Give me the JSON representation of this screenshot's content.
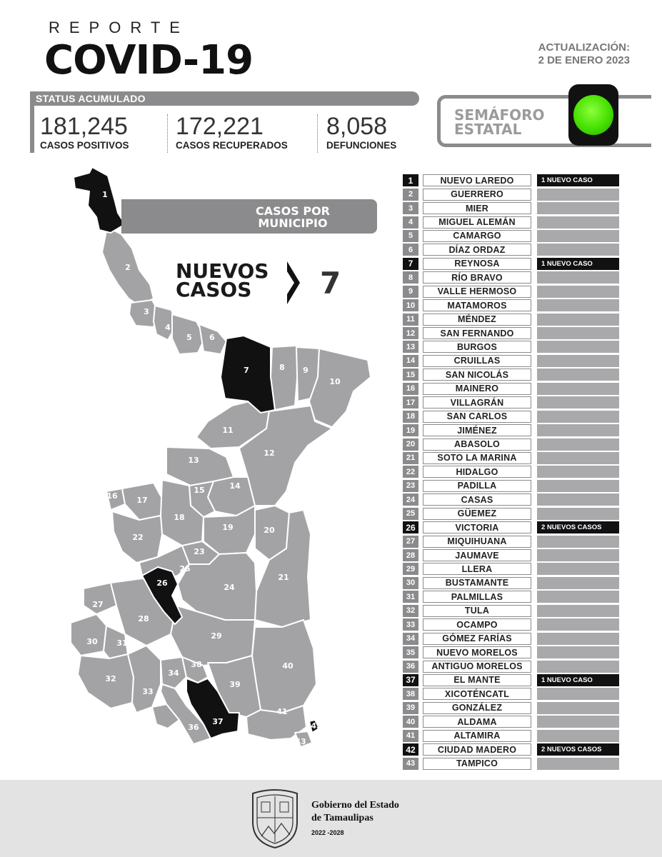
{
  "header": {
    "reporte": "REPORTE",
    "title": "COVID-19",
    "update_label": "ACTUALIZACIÓN:",
    "update_date": "2 DE ENERO 2023"
  },
  "status": {
    "label": "STATUS ACUMULADO",
    "positivos": {
      "value": "181,245",
      "label": "CASOS POSITIVOS"
    },
    "recuperados": {
      "value": "172,221",
      "label": "CASOS RECUPERADOS"
    },
    "defunciones": {
      "value": "8,058",
      "label": "DEFUNCIONES"
    }
  },
  "semaforo": {
    "line1": "SEMÁFORO",
    "line2": "ESTATAL",
    "color": "#44e000"
  },
  "map": {
    "banner_line1": "CASOS POR",
    "banner_line2": "MUNICIPIO",
    "nuevos_line1": "NUEVOS",
    "nuevos_line2": "CASOS",
    "nuevos_count": "7",
    "labels": [
      "1",
      "2",
      "3",
      "4",
      "5",
      "6",
      "7",
      "8",
      "9",
      "10",
      "11",
      "12",
      "13",
      "14",
      "15",
      "16",
      "17",
      "18",
      "19",
      "20",
      "21",
      "22",
      "23",
      "24",
      "25",
      "26",
      "27",
      "28",
      "29",
      "30",
      "31",
      "32",
      "33",
      "34",
      "35",
      "36",
      "37",
      "38",
      "39",
      "40",
      "41",
      "42",
      "43"
    ]
  },
  "municipios": [
    {
      "num": "1",
      "name": "NUEVO LAREDO",
      "cases": "1 NUEVO CASO",
      "highlight": true
    },
    {
      "num": "2",
      "name": "GUERRERO",
      "cases": "",
      "highlight": false
    },
    {
      "num": "3",
      "name": "MIER",
      "cases": "",
      "highlight": false
    },
    {
      "num": "4",
      "name": "MIGUEL ALEMÁN",
      "cases": "",
      "highlight": false
    },
    {
      "num": "5",
      "name": "CAMARGO",
      "cases": "",
      "highlight": false
    },
    {
      "num": "6",
      "name": "DÍAZ ORDAZ",
      "cases": "",
      "highlight": false
    },
    {
      "num": "7",
      "name": "REYNOSA",
      "cases": "1 NUEVO CASO",
      "highlight": true
    },
    {
      "num": "8",
      "name": "RÍO BRAVO",
      "cases": "",
      "highlight": false
    },
    {
      "num": "9",
      "name": "VALLE HERMOSO",
      "cases": "",
      "highlight": false
    },
    {
      "num": "10",
      "name": "MATAMOROS",
      "cases": "",
      "highlight": false
    },
    {
      "num": "11",
      "name": "MÉNDEZ",
      "cases": "",
      "highlight": false
    },
    {
      "num": "12",
      "name": "SAN FERNANDO",
      "cases": "",
      "highlight": false
    },
    {
      "num": "13",
      "name": "BURGOS",
      "cases": "",
      "highlight": false
    },
    {
      "num": "14",
      "name": "CRUILLAS",
      "cases": "",
      "highlight": false
    },
    {
      "num": "15",
      "name": "SAN NICOLÁS",
      "cases": "",
      "highlight": false
    },
    {
      "num": "16",
      "name": "MAINERO",
      "cases": "",
      "highlight": false
    },
    {
      "num": "17",
      "name": "VILLAGRÁN",
      "cases": "",
      "highlight": false
    },
    {
      "num": "18",
      "name": "SAN CARLOS",
      "cases": "",
      "highlight": false
    },
    {
      "num": "19",
      "name": "JIMÉNEZ",
      "cases": "",
      "highlight": false
    },
    {
      "num": "20",
      "name": "ABASOLO",
      "cases": "",
      "highlight": false
    },
    {
      "num": "21",
      "name": "SOTO LA MARINA",
      "cases": "",
      "highlight": false
    },
    {
      "num": "22",
      "name": "HIDALGO",
      "cases": "",
      "highlight": false
    },
    {
      "num": "23",
      "name": "PADILLA",
      "cases": "",
      "highlight": false
    },
    {
      "num": "24",
      "name": "CASAS",
      "cases": "",
      "highlight": false
    },
    {
      "num": "25",
      "name": "GÜEMEZ",
      "cases": "",
      "highlight": false
    },
    {
      "num": "26",
      "name": "VICTORIA",
      "cases": "2 NUEVOS CASOS",
      "highlight": true
    },
    {
      "num": "27",
      "name": "MIQUIHUANA",
      "cases": "",
      "highlight": false
    },
    {
      "num": "28",
      "name": "JAUMAVE",
      "cases": "",
      "highlight": false
    },
    {
      "num": "29",
      "name": "LLERA",
      "cases": "",
      "highlight": false
    },
    {
      "num": "30",
      "name": "BUSTAMANTE",
      "cases": "",
      "highlight": false
    },
    {
      "num": "31",
      "name": "PALMILLAS",
      "cases": "",
      "highlight": false
    },
    {
      "num": "32",
      "name": "TULA",
      "cases": "",
      "highlight": false
    },
    {
      "num": "33",
      "name": "OCAMPO",
      "cases": "",
      "highlight": false
    },
    {
      "num": "34",
      "name": "GÓMEZ FARÍAS",
      "cases": "",
      "highlight": false
    },
    {
      "num": "35",
      "name": "NUEVO MORELOS",
      "cases": "",
      "highlight": false
    },
    {
      "num": "36",
      "name": "ANTIGUO MORELOS",
      "cases": "",
      "highlight": false
    },
    {
      "num": "37",
      "name": "EL MANTE",
      "cases": "1 NUEVO CASO",
      "highlight": true
    },
    {
      "num": "38",
      "name": "XICOTÉNCATL",
      "cases": "",
      "highlight": false
    },
    {
      "num": "39",
      "name": "GONZÁLEZ",
      "cases": "",
      "highlight": false
    },
    {
      "num": "40",
      "name": "ALDAMA",
      "cases": "",
      "highlight": false
    },
    {
      "num": "41",
      "name": "ALTAMIRA",
      "cases": "",
      "highlight": false
    },
    {
      "num": "42",
      "name": "CIUDAD MADERO",
      "cases": "2 NUEVOS CASOS",
      "highlight": true
    },
    {
      "num": "43",
      "name": "TAMPICO",
      "cases": "",
      "highlight": false
    }
  ],
  "footer": {
    "line1": "Gobierno del Estado",
    "line2": "de Tamaulipas",
    "line3": "2022 -2028"
  }
}
